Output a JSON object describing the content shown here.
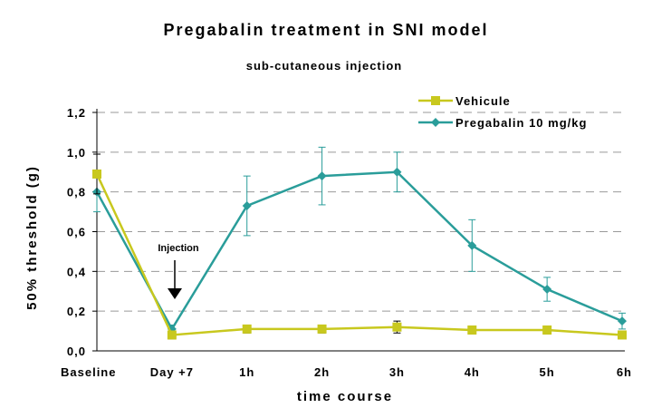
{
  "chart_data": {
    "type": "line",
    "title": "Pregabalin treatment in SNI model",
    "subtitle": "sub-cutaneous injection",
    "xlabel": "time course",
    "ylabel": "50% threshold (g)",
    "categories": [
      "Baseline",
      "Day +7",
      "1h",
      "2h",
      "3h",
      "4h",
      "5h",
      "6h"
    ],
    "yticks": [
      "0,0",
      "0,2",
      "0,4",
      "0,6",
      "0,8",
      "1,0",
      "1,2"
    ],
    "ylim": [
      0,
      1.2
    ],
    "grid": "horizontal dashed",
    "legend_position": "top-right",
    "annotation": "Injection",
    "series": [
      {
        "name": "Vehicule",
        "color": "#c8c81e",
        "marker": "square",
        "values": [
          0.89,
          0.08,
          0.11,
          0.11,
          0.12,
          0.105,
          0.105,
          0.08
        ],
        "errors": [
          0.1,
          0.02,
          0.02,
          0.02,
          0.03,
          0.02,
          0.02,
          0.015
        ]
      },
      {
        "name": "Pregabalin 10 mg/kg",
        "color": "#2a9d9a",
        "marker": "diamond",
        "values": [
          0.8,
          0.11,
          0.73,
          0.88,
          0.9,
          0.53,
          0.31,
          0.15
        ],
        "errors": [
          0.1,
          0.02,
          0.15,
          0.145,
          0.1,
          0.13,
          0.06,
          0.04
        ]
      }
    ]
  }
}
